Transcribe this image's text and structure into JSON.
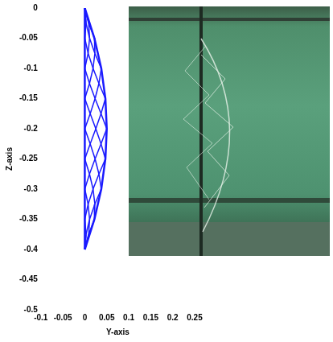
{
  "chart_data": {
    "type": "line",
    "x_label": "Y-axis",
    "y_label": "Z-axis",
    "xlim": [
      -0.1,
      0.25
    ],
    "ylim": [
      -0.5,
      0
    ],
    "xticks": [
      -0.1,
      -0.05,
      0,
      0.05,
      0.1,
      0.15,
      0.2,
      0.25
    ],
    "yticks": [
      0,
      -0.05,
      -0.1,
      -0.15,
      -0.2,
      -0.25,
      -0.3,
      -0.35,
      -0.4,
      -0.45,
      -0.5
    ],
    "grid": false,
    "color": "#1a1aff",
    "mesh": {
      "z": [
        0,
        -0.025,
        -0.05,
        -0.075,
        -0.1,
        -0.125,
        -0.15,
        -0.175,
        -0.2,
        -0.225,
        -0.25,
        -0.275,
        -0.3,
        -0.325,
        -0.35,
        -0.375,
        -0.4
      ],
      "y": [
        [
          0,
          null,
          0,
          null,
          0
        ],
        [
          null,
          0.0029,
          null,
          0.0088,
          null
        ],
        [
          0,
          null,
          0.0109,
          null,
          0.0219
        ],
        [
          null,
          0.0076,
          null,
          0.0229,
          null
        ],
        [
          0,
          null,
          0.0188,
          null,
          0.0375
        ],
        [
          null,
          0.0107,
          null,
          0.0322,
          null
        ],
        [
          0,
          null,
          0.0234,
          null,
          0.0469
        ],
        [
          null,
          0.0123,
          null,
          0.0369,
          null
        ],
        [
          0,
          null,
          0.025,
          null,
          0.05
        ],
        [
          null,
          0.0123,
          null,
          0.0369,
          null
        ],
        [
          0,
          null,
          0.0234,
          null,
          0.0469
        ],
        [
          null,
          0.0107,
          null,
          0.0322,
          null
        ],
        [
          0,
          null,
          0.0188,
          null,
          0.0375
        ],
        [
          null,
          0.0076,
          null,
          0.0229,
          null
        ],
        [
          0,
          null,
          0.0109,
          null,
          0.0219
        ],
        [
          null,
          0.0029,
          null,
          0.0088,
          null
        ],
        [
          0,
          null,
          0,
          null,
          0
        ]
      ]
    }
  }
}
